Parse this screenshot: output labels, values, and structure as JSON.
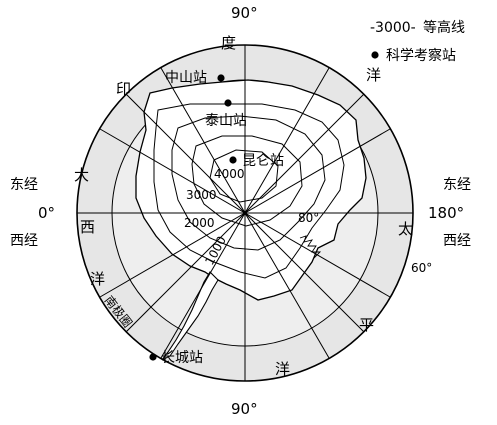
{
  "legend": {
    "contour_sample": "-3000-",
    "contour_label": "等高线",
    "station_label": "科学考察站"
  },
  "longitude_labels": {
    "top": "90°",
    "bottom": "90°",
    "left_east": "东经",
    "left_zero": "0°",
    "left_west": "西经",
    "right_east": "东经",
    "right_180": "180°",
    "right_west": "西经",
    "lon_80": "80°",
    "lat_60": "60°"
  },
  "ocean_chars": {
    "indian": [
      "印",
      "度",
      "洋"
    ],
    "atlantic": [
      "大",
      "西",
      "洋"
    ],
    "pacific": [
      "太",
      "平",
      "洋"
    ]
  },
  "stations": [
    {
      "name": "中山站"
    },
    {
      "name": "泰山站"
    },
    {
      "name": "昆仑站"
    },
    {
      "name": "长城站"
    }
  ],
  "contours": [
    "4000",
    "3000",
    "2000",
    "1000"
  ],
  "antarctic_circle": "南极圈"
}
